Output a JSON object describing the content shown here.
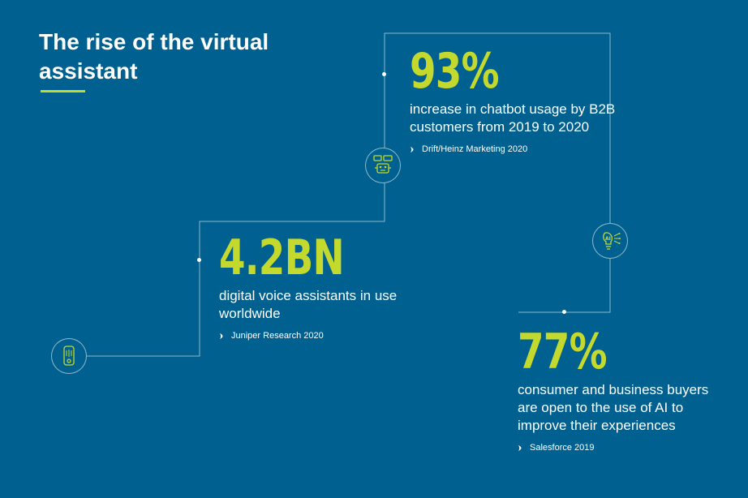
{
  "title": "The rise of the virtual assistant",
  "colors": {
    "background": "#00608f",
    "accent": "#c4d92e",
    "text": "#ffffff"
  },
  "stats": [
    {
      "value": "93%",
      "description": "increase in chatbot usage by B2B customers from 2019 to 2020",
      "source": "Drift/Heinz Marketing 2020",
      "icon": "chatbot-robot-icon"
    },
    {
      "value": "4.2BN",
      "description": "digital voice assistants in use worldwide",
      "source": "Juniper Research 2020",
      "icon": "voice-assistant-device-icon"
    },
    {
      "value": "77%",
      "description": "consumer and business buyers are open to the use of AI to improve their experiences",
      "source": "Salesforce 2019",
      "icon": "ai-lightbulb-icon"
    }
  ]
}
